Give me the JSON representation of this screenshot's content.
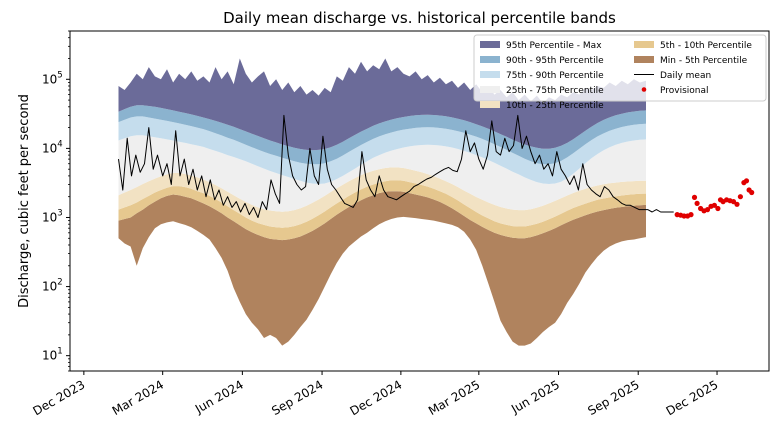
{
  "chart_data": {
    "type": "area",
    "title": "Daily mean discharge vs. historical percentile bands",
    "xlabel": "",
    "ylabel": "Discharge, cubic feet per second",
    "yscale": "log",
    "ylim": [
      6,
      500000
    ],
    "y_ticks": [
      {
        "value": 10,
        "base": "10",
        "exp": "1"
      },
      {
        "value": 100,
        "base": "10",
        "exp": "2"
      },
      {
        "value": 1000,
        "base": "10",
        "exp": "3"
      },
      {
        "value": 10000,
        "base": "10",
        "exp": "4"
      },
      {
        "value": 100000,
        "base": "10",
        "exp": "5"
      }
    ],
    "x_range": [
      "2023-11-15",
      "2026-01-30"
    ],
    "x_ticks": [
      {
        "date": "2023-12-01",
        "label": "Dec 2023"
      },
      {
        "date": "2024-03-01",
        "label": "Mar 2024"
      },
      {
        "date": "2024-06-01",
        "label": "Jun 2024"
      },
      {
        "date": "2024-09-01",
        "label": "Sep 2024"
      },
      {
        "date": "2024-12-01",
        "label": "Dec 2024"
      },
      {
        "date": "2025-03-01",
        "label": "Mar 2025"
      },
      {
        "date": "2025-06-01",
        "label": "Jun 2025"
      },
      {
        "date": "2025-09-01",
        "label": "Sep 2025"
      },
      {
        "date": "2025-12-01",
        "label": "Dec 2025"
      }
    ],
    "legend": {
      "placement": "top-right",
      "entries": [
        {
          "label": "95th Percentile - Max",
          "kind": "patch",
          "color": "#6b6b99"
        },
        {
          "label": "90th - 95th Percentile",
          "kind": "patch",
          "color": "#8bb3cf"
        },
        {
          "label": "75th - 90th Percentile",
          "kind": "patch",
          "color": "#c5dded"
        },
        {
          "label": "25th - 75th Percentile",
          "kind": "patch",
          "color": "#efefef"
        },
        {
          "label": "10th - 25th Percentile",
          "kind": "patch",
          "color": "#f2e2c3"
        },
        {
          "label": "5th - 10th Percentile",
          "kind": "patch",
          "color": "#e6c88f"
        },
        {
          "label": "Min - 5th Percentile",
          "kind": "patch",
          "color": "#b0835e"
        },
        {
          "label": "Daily mean",
          "kind": "line",
          "color": "#000000"
        },
        {
          "label": "Provisional",
          "kind": "dot",
          "color": "#e00000"
        }
      ]
    },
    "bands_weekly": {
      "start": "2024-01-10",
      "step_days": 7,
      "min": [
        500,
        420,
        380,
        200,
        360,
        520,
        700,
        800,
        850,
        880,
        830,
        780,
        720,
        640,
        560,
        480,
        360,
        260,
        170,
        95,
        60,
        40,
        30,
        24,
        18,
        20,
        18,
        14,
        16,
        20,
        26,
        33,
        46,
        66,
        100,
        150,
        220,
        300,
        380,
        450,
        530,
        600,
        700,
        800,
        880,
        950,
        1000,
        1020,
        1000,
        980,
        950,
        930,
        900,
        860,
        820,
        780,
        720,
        620,
        480,
        340,
        200,
        110,
        60,
        32,
        22,
        16,
        14,
        14,
        15,
        18,
        22,
        26,
        30,
        40,
        58,
        78,
        110,
        160,
        210,
        270,
        330,
        380,
        420,
        450,
        470,
        480,
        500,
        520
      ],
      "p05": [
        900,
        950,
        1000,
        1150,
        1300,
        1500,
        1700,
        1900,
        2050,
        2150,
        2100,
        2000,
        1900,
        1750,
        1600,
        1450,
        1300,
        1150,
        1000,
        880,
        770,
        680,
        610,
        560,
        520,
        490,
        480,
        470,
        480,
        500,
        530,
        580,
        640,
        720,
        820,
        950,
        1100,
        1250,
        1420,
        1600,
        1780,
        1950,
        2100,
        2250,
        2350,
        2400,
        2400,
        2350,
        2250,
        2150,
        2050,
        1950,
        1820,
        1680,
        1520,
        1360,
        1200,
        1050,
        920,
        820,
        730,
        660,
        600,
        560,
        530,
        510,
        500,
        500,
        520,
        550,
        590,
        640,
        700,
        770,
        850,
        930,
        1000,
        1080,
        1150,
        1220,
        1280,
        1330,
        1380,
        1420,
        1450,
        1480,
        1500,
        1520
      ],
      "p10": [
        1300,
        1400,
        1500,
        1650,
        1850,
        2050,
        2300,
        2500,
        2700,
        2850,
        2850,
        2750,
        2600,
        2400,
        2250,
        2050,
        1850,
        1650,
        1450,
        1280,
        1130,
        1000,
        900,
        830,
        780,
        740,
        720,
        710,
        720,
        750,
        800,
        870,
        960,
        1080,
        1220,
        1400,
        1600,
        1800,
        2050,
        2300,
        2550,
        2800,
        3000,
        3200,
        3350,
        3450,
        3450,
        3400,
        3250,
        3100,
        2950,
        2800,
        2600,
        2400,
        2200,
        1980,
        1760,
        1540,
        1360,
        1200,
        1070,
        970,
        880,
        820,
        780,
        750,
        740,
        740,
        770,
        810,
        870,
        940,
        1030,
        1130,
        1250,
        1370,
        1480,
        1590,
        1700,
        1800,
        1880,
        1950,
        2020,
        2080,
        2130,
        2170,
        2200,
        2220
      ],
      "p25": [
        2100,
        2300,
        2500,
        2750,
        3050,
        3350,
        3650,
        3950,
        4200,
        4400,
        4400,
        4250,
        4050,
        3800,
        3550,
        3250,
        2950,
        2650,
        2350,
        2100,
        1870,
        1680,
        1520,
        1400,
        1320,
        1260,
        1230,
        1210,
        1230,
        1280,
        1360,
        1480,
        1630,
        1820,
        2050,
        2340,
        2650,
        2980,
        3350,
        3720,
        4100,
        4450,
        4750,
        5000,
        5200,
        5300,
        5300,
        5200,
        5000,
        4750,
        4500,
        4250,
        3950,
        3650,
        3350,
        3050,
        2750,
        2450,
        2200,
        1980,
        1800,
        1650,
        1520,
        1420,
        1350,
        1300,
        1280,
        1280,
        1320,
        1390,
        1480,
        1600,
        1740,
        1900,
        2080,
        2260,
        2430,
        2600,
        2760,
        2900,
        3020,
        3120,
        3200,
        3270,
        3320,
        3360,
        3390,
        3400
      ],
      "p75": [
        13000,
        14000,
        15000,
        15500,
        15500,
        15000,
        14500,
        14000,
        13500,
        13000,
        12500,
        12000,
        11500,
        11000,
        10500,
        9800,
        9200,
        8600,
        8000,
        7500,
        7000,
        6500,
        6000,
        5500,
        5100,
        4700,
        4400,
        4100,
        3850,
        3600,
        3400,
        3200,
        3100,
        3050,
        3100,
        3300,
        3600,
        4000,
        4500,
        5100,
        5800,
        6500,
        7300,
        8000,
        8700,
        9300,
        9800,
        10300,
        10700,
        11000,
        11200,
        11300,
        11200,
        11000,
        10700,
        10300,
        9800,
        9200,
        8600,
        8000,
        7400,
        6800,
        6200,
        5600,
        5100,
        4600,
        4200,
        3800,
        3500,
        3250,
        3100,
        3050,
        3100,
        3300,
        3700,
        4300,
        5100,
        6100,
        7200,
        8300,
        9400,
        10400,
        11300,
        12000,
        12600,
        13000,
        13300,
        13500
      ],
      "p90": [
        24000,
        26000,
        28000,
        29000,
        29000,
        28000,
        27000,
        26000,
        25000,
        24000,
        23000,
        22000,
        21000,
        20000,
        19000,
        17800,
        16600,
        15400,
        14300,
        13300,
        12300,
        11300,
        10400,
        9600,
        8900,
        8300,
        7800,
        7300,
        6900,
        6500,
        6200,
        6000,
        5900,
        5900,
        6100,
        6500,
        7100,
        7900,
        8900,
        10000,
        11200,
        12400,
        13700,
        14900,
        16000,
        17000,
        17900,
        18700,
        19300,
        19800,
        20100,
        20200,
        20100,
        19700,
        19200,
        18500,
        17700,
        16800,
        15800,
        14800,
        13700,
        12600,
        11500,
        10500,
        9500,
        8600,
        7800,
        7100,
        6500,
        6100,
        5900,
        5900,
        6100,
        6600,
        7400,
        8500,
        9900,
        11500,
        13200,
        14900,
        16500,
        18000,
        19300,
        20400,
        21300,
        22000,
        22500,
        22800
      ],
      "p95": [
        34000,
        37000,
        40000,
        42000,
        42000,
        41000,
        40000,
        38500,
        37000,
        35500,
        34000,
        32500,
        31000,
        29500,
        28000,
        26500,
        25000,
        23500,
        22000,
        20500,
        19000,
        17600,
        16300,
        15100,
        14000,
        13000,
        12200,
        11400,
        10800,
        10200,
        9800,
        9500,
        9400,
        9500,
        9800,
        10400,
        11300,
        12500,
        14000,
        15700,
        17500,
        19300,
        21200,
        23000,
        24600,
        26100,
        27400,
        28500,
        29400,
        30100,
        30500,
        30600,
        30400,
        29900,
        29100,
        28100,
        26900,
        25500,
        24000,
        22400,
        20800,
        19200,
        17600,
        16100,
        14700,
        13400,
        12300,
        11400,
        10700,
        10200,
        9900,
        9900,
        10200,
        10900,
        12000,
        13600,
        15600,
        18000,
        20600,
        23300,
        25800,
        28100,
        30100,
        31800,
        33200,
        34200,
        35000,
        35500
      ],
      "max": [
        80000,
        70000,
        90000,
        120000,
        100000,
        150000,
        110000,
        100000,
        140000,
        90000,
        120000,
        100000,
        130000,
        95000,
        110000,
        90000,
        150000,
        100000,
        130000,
        85000,
        200000,
        120000,
        90000,
        110000,
        130000,
        80000,
        100000,
        70000,
        90000,
        65000,
        80000,
        60000,
        70000,
        58000,
        75000,
        65000,
        110000,
        95000,
        150000,
        120000,
        180000,
        130000,
        160000,
        140000,
        200000,
        130000,
        150000,
        120000,
        110000,
        130000,
        100000,
        115000,
        90000,
        105000,
        85000,
        95000,
        75000,
        90000,
        70000,
        85000,
        65000,
        80000,
        60000,
        70000,
        55000,
        65000,
        50000,
        60000,
        48000,
        58000,
        45000,
        55000,
        50000,
        60000,
        55000,
        65000,
        60000,
        75000,
        70000,
        80000,
        75000,
        90000,
        80000,
        95000,
        85000,
        100000,
        90000,
        95000
      ]
    },
    "daily_mean": {
      "x": [
        "2024-01-10",
        "2024-01-15",
        "2024-01-20",
        "2024-01-25",
        "2024-01-30",
        "2024-02-04",
        "2024-02-09",
        "2024-02-14",
        "2024-02-19",
        "2024-02-24",
        "2024-03-01",
        "2024-03-06",
        "2024-03-11",
        "2024-03-16",
        "2024-03-21",
        "2024-03-26",
        "2024-03-31",
        "2024-04-05",
        "2024-04-10",
        "2024-04-15",
        "2024-04-20",
        "2024-04-25",
        "2024-04-30",
        "2024-05-05",
        "2024-05-10",
        "2024-05-15",
        "2024-05-20",
        "2024-05-25",
        "2024-05-30",
        "2024-06-04",
        "2024-06-09",
        "2024-06-14",
        "2024-06-19",
        "2024-06-24",
        "2024-06-29",
        "2024-07-04",
        "2024-07-09",
        "2024-07-14",
        "2024-07-19",
        "2024-07-24",
        "2024-07-29",
        "2024-08-03",
        "2024-08-08",
        "2024-08-13",
        "2024-08-18",
        "2024-08-23",
        "2024-08-28",
        "2024-09-02",
        "2024-09-07",
        "2024-09-12",
        "2024-09-17",
        "2024-09-22",
        "2024-09-27",
        "2024-10-02",
        "2024-10-07",
        "2024-10-12",
        "2024-10-17",
        "2024-10-22",
        "2024-10-27",
        "2024-11-01",
        "2024-11-06",
        "2024-11-11",
        "2024-11-16",
        "2024-11-21",
        "2024-11-26",
        "2024-12-01",
        "2024-12-06",
        "2024-12-11",
        "2024-12-16",
        "2024-12-21",
        "2024-12-26",
        "2024-12-31",
        "2025-01-05",
        "2025-01-10",
        "2025-01-15",
        "2025-01-20",
        "2025-01-25",
        "2025-01-30",
        "2025-02-04",
        "2025-02-09",
        "2025-02-14",
        "2025-02-19",
        "2025-02-24",
        "2025-03-01",
        "2025-03-06",
        "2025-03-11",
        "2025-03-16",
        "2025-03-21",
        "2025-03-26",
        "2025-03-31",
        "2025-04-05",
        "2025-04-10",
        "2025-04-15",
        "2025-04-20",
        "2025-04-25",
        "2025-04-30",
        "2025-05-05",
        "2025-05-10",
        "2025-05-15",
        "2025-05-20",
        "2025-05-25",
        "2025-05-30",
        "2025-06-04",
        "2025-06-09",
        "2025-06-14",
        "2025-06-19",
        "2025-06-24",
        "2025-06-29",
        "2025-07-04",
        "2025-07-09",
        "2025-07-14",
        "2025-07-19",
        "2025-07-24",
        "2025-07-29",
        "2025-08-03",
        "2025-08-08",
        "2025-08-13",
        "2025-08-18",
        "2025-08-23",
        "2025-08-28",
        "2025-09-02",
        "2025-09-07",
        "2025-09-12",
        "2025-09-17",
        "2025-09-22",
        "2025-09-27",
        "2025-10-02",
        "2025-10-07",
        "2025-10-12"
      ],
      "y": [
        7000,
        2500,
        14000,
        4000,
        8000,
        4500,
        6000,
        20000,
        5000,
        8000,
        4000,
        6000,
        3000,
        18000,
        4000,
        7000,
        3000,
        5000,
        2500,
        4000,
        2000,
        3500,
        1800,
        2500,
        1500,
        2000,
        1400,
        1700,
        1200,
        1600,
        1100,
        1400,
        1000,
        1700,
        1300,
        3500,
        2200,
        1600,
        30000,
        8000,
        4000,
        3000,
        2500,
        2800,
        10000,
        4000,
        3000,
        15000,
        5000,
        3000,
        2500,
        2000,
        1600,
        1500,
        1400,
        1800,
        9000,
        3500,
        2500,
        2000,
        4000,
        2500,
        2000,
        1900,
        1800,
        2000,
        2200,
        2400,
        2800,
        3000,
        3300,
        3600,
        3800,
        4200,
        4600,
        5000,
        5300,
        4800,
        4600,
        7000,
        18000,
        9000,
        12000,
        7000,
        5000,
        8000,
        25000,
        9000,
        8000,
        14000,
        9000,
        11000,
        30000,
        10000,
        15000,
        9000,
        6000,
        8000,
        5000,
        6000,
        4000,
        9000,
        5000,
        4000,
        3000,
        4000,
        2500,
        6000,
        3000,
        2500,
        2200,
        2000,
        2800,
        2500,
        2000,
        1800,
        1600,
        1500,
        1500,
        1400,
        1300,
        1300,
        1300,
        1200,
        1300,
        1200,
        1200,
        1200,
        1200
      ]
    },
    "provisional": {
      "x": [
        "2025-10-16",
        "2025-10-20",
        "2025-10-24",
        "2025-10-28",
        "2025-11-01",
        "2025-11-05",
        "2025-11-08",
        "2025-11-12",
        "2025-11-16",
        "2025-11-20",
        "2025-11-24",
        "2025-11-28",
        "2025-12-02",
        "2025-12-05",
        "2025-12-08",
        "2025-12-12",
        "2025-12-16",
        "2025-12-20",
        "2025-12-24",
        "2025-12-28",
        "2026-01-01",
        "2026-01-04",
        "2026-01-07",
        "2026-01-10"
      ],
      "y": [
        1100,
        1080,
        1050,
        1050,
        1100,
        1950,
        1600,
        1350,
        1250,
        1300,
        1450,
        1500,
        1350,
        1800,
        1700,
        1800,
        1750,
        1700,
        1550,
        2000,
        3200,
        3400,
        2500,
        2300
      ]
    }
  }
}
